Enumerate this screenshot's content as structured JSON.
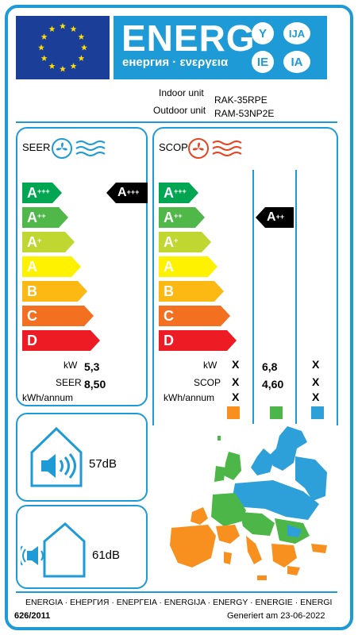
{
  "header": {
    "energy_word": "ENERG",
    "energy_sub": "енергия · ενεργεια",
    "lang_badges": [
      "Y",
      "IJA",
      "IE",
      "IA"
    ],
    "colors": {
      "brand_blue": "#1e9ad6",
      "eu_blue": "#1b3f99",
      "eu_star": "#ffdd00"
    }
  },
  "units": {
    "indoor_label": "Indoor unit",
    "indoor_model": "RAK-35RPE",
    "outdoor_label": "Outdoor unit",
    "outdoor_model": "RAM-53NP2E"
  },
  "classes": [
    {
      "letter": "A",
      "sup": "+++",
      "color": "#00a651"
    },
    {
      "letter": "A",
      "sup": "++",
      "color": "#50b848"
    },
    {
      "letter": "A",
      "sup": "+",
      "color": "#bfd730"
    },
    {
      "letter": "A",
      "sup": "",
      "color": "#fff200"
    },
    {
      "letter": "B",
      "sup": "",
      "color": "#fdb913"
    },
    {
      "letter": "C",
      "sup": "",
      "color": "#f37021"
    },
    {
      "letter": "D",
      "sup": "",
      "color": "#ed1c24"
    }
  ],
  "seer": {
    "title": "SEER",
    "rating_letter": "A",
    "rating_sup": "+++",
    "rating_class_index": 0,
    "kw_label": "kW",
    "kw_value": "5,3",
    "seer_label": "SEER",
    "seer_value": "8,50",
    "kwh_label": "kWh/annum"
  },
  "scop": {
    "title": "SCOP",
    "rating_letter": "A",
    "rating_sup": "++",
    "rating_class_index": 1,
    "kw_label": "kW",
    "scop_label": "SCOP",
    "kwh_label": "kWh/annum",
    "warmer": {
      "kw": "X",
      "scop": "X",
      "kwh": "X",
      "color": "#f7901e"
    },
    "average": {
      "kw": "6,8",
      "scop": "4,60",
      "kwh": "",
      "color": "#4cb748"
    },
    "colder": {
      "kw": "X",
      "scop": "X",
      "kwh": "X",
      "color": "#2d9fd9"
    }
  },
  "noise": {
    "indoor_db": "57dB",
    "outdoor_db": "61dB"
  },
  "footer": {
    "languages": "ENERGIA · ЕНЕРГИЯ · ΕΝΕΡΓΕΙΑ · ENERGIJA · ENERGY · ENERGIE · ENERGI",
    "regulation": "626/2011",
    "generated": "Generiert am 23-06-2022"
  }
}
